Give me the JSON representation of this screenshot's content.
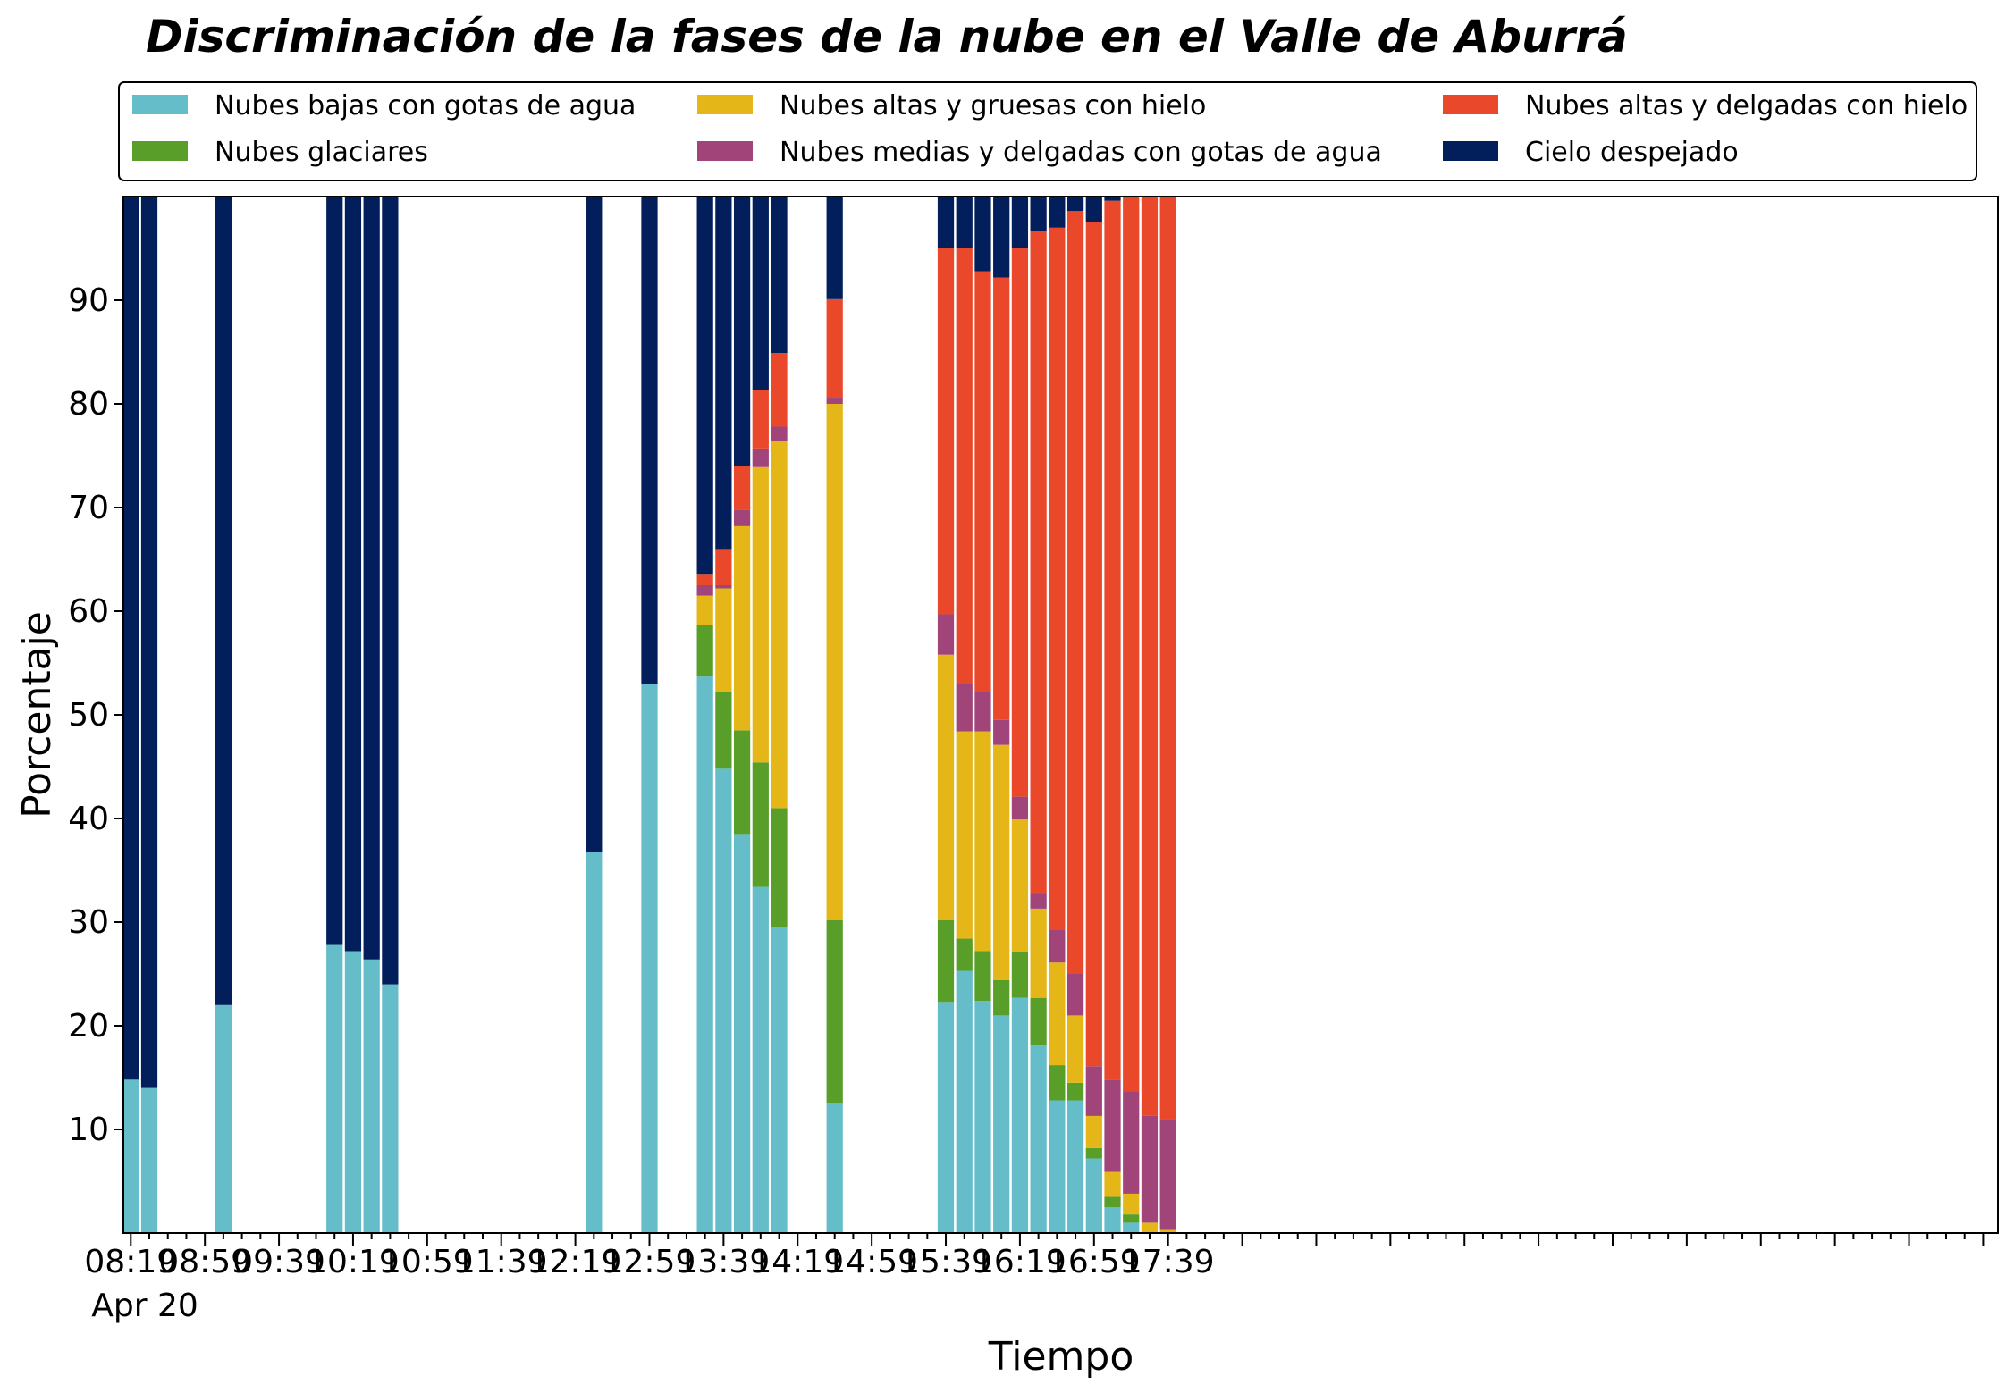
{
  "chart_data": {
    "type": "bar",
    "stacked": true,
    "title": "Discriminación de la fases de la nube en el Valle de Aburrá",
    "xlabel": "Tiempo",
    "ylabel": "Porcentaje",
    "ylim": [
      0,
      100
    ],
    "yticks": [
      10,
      20,
      30,
      40,
      50,
      60,
      70,
      80,
      90
    ],
    "x_range_minutes": [
      -4,
      1008
    ],
    "x_tick_labels": [
      "08:19",
      "08:59",
      "09:39",
      "10:19",
      "10:59",
      "11:39",
      "12:19",
      "12:59",
      "13:39",
      "14:19",
      "14:59",
      "15:39",
      "16:19",
      "16:59",
      "17:39"
    ],
    "x_tick_sublabel": "Apr 20",
    "minor_tick_step_min": 10,
    "grid": false,
    "legend_placement": "top",
    "x": [
      "08:19",
      "08:29",
      "09:09",
      "10:09",
      "10:19",
      "10:29",
      "10:39",
      "12:29",
      "12:59",
      "13:29",
      "13:39",
      "13:49",
      "13:59",
      "14:09",
      "14:39",
      "15:39",
      "15:49",
      "15:59",
      "16:09",
      "16:19",
      "16:29",
      "16:39",
      "16:49",
      "16:59",
      "17:09",
      "17:19",
      "17:29",
      "17:39"
    ],
    "series": [
      {
        "name": "Nubes bajas con gotas de agua",
        "color": "#64BDC9",
        "values": [
          14.8,
          14.0,
          22.0,
          27.8,
          27.2,
          26.4,
          24.0,
          36.8,
          53.0,
          53.7,
          44.8,
          38.5,
          33.4,
          29.5,
          12.5,
          22.3,
          25.3,
          22.4,
          21.0,
          22.7,
          18.1,
          12.8,
          12.8,
          7.2,
          2.5,
          1.0,
          0,
          0
        ]
      },
      {
        "name": "Nubes glaciares",
        "color": "#5A9E2A",
        "values": [
          0,
          0,
          0,
          0,
          0,
          0,
          0,
          0,
          0,
          5.0,
          7.4,
          10.0,
          12.0,
          11.5,
          17.7,
          7.9,
          3.1,
          4.8,
          3.4,
          4.4,
          4.6,
          3.4,
          1.7,
          1.0,
          1.0,
          0.8,
          0,
          0
        ]
      },
      {
        "name": "Nubes altas y gruesas con hielo",
        "color": "#E5B618",
        "values": [
          0,
          0,
          0,
          0,
          0,
          0,
          0,
          0,
          0,
          2.8,
          10.0,
          19.7,
          28.5,
          35.4,
          49.8,
          25.6,
          20.0,
          21.2,
          22.7,
          12.8,
          8.6,
          9.9,
          6.5,
          3.1,
          2.4,
          2.0,
          1.0,
          0.3
        ]
      },
      {
        "name": "Nubes medias y delgadas con gotas de agua",
        "color": "#A0447A",
        "values": [
          0,
          0,
          0,
          0,
          0,
          0,
          0,
          0,
          0,
          1.0,
          0.3,
          1.6,
          1.8,
          1.4,
          0.6,
          3.9,
          4.6,
          3.8,
          2.4,
          2.2,
          1.5,
          3.2,
          4.0,
          4.8,
          8.9,
          9.9,
          10.3,
          10.7
        ]
      },
      {
        "name": "Nubes altas y delgadas con hielo",
        "color": "#EA482A",
        "values": [
          0,
          0,
          0,
          0,
          0,
          0,
          0,
          0,
          0,
          1.1,
          3.5,
          4.2,
          5.6,
          7.1,
          9.5,
          35.3,
          42.0,
          40.6,
          42.7,
          52.9,
          63.9,
          67.7,
          73.6,
          81.4,
          84.8,
          86.3,
          88.7,
          89.0
        ]
      },
      {
        "name": "Cielo despejado",
        "color": "#021F5C",
        "values": [
          85.2,
          86.0,
          78.0,
          72.2,
          72.8,
          73.6,
          76.0,
          63.2,
          47.0,
          36.4,
          34.0,
          26.0,
          18.7,
          15.1,
          9.9,
          5.0,
          5.0,
          7.2,
          7.8,
          5.0,
          3.3,
          3.0,
          1.4,
          2.5,
          0.4,
          0,
          0,
          0
        ]
      }
    ]
  }
}
